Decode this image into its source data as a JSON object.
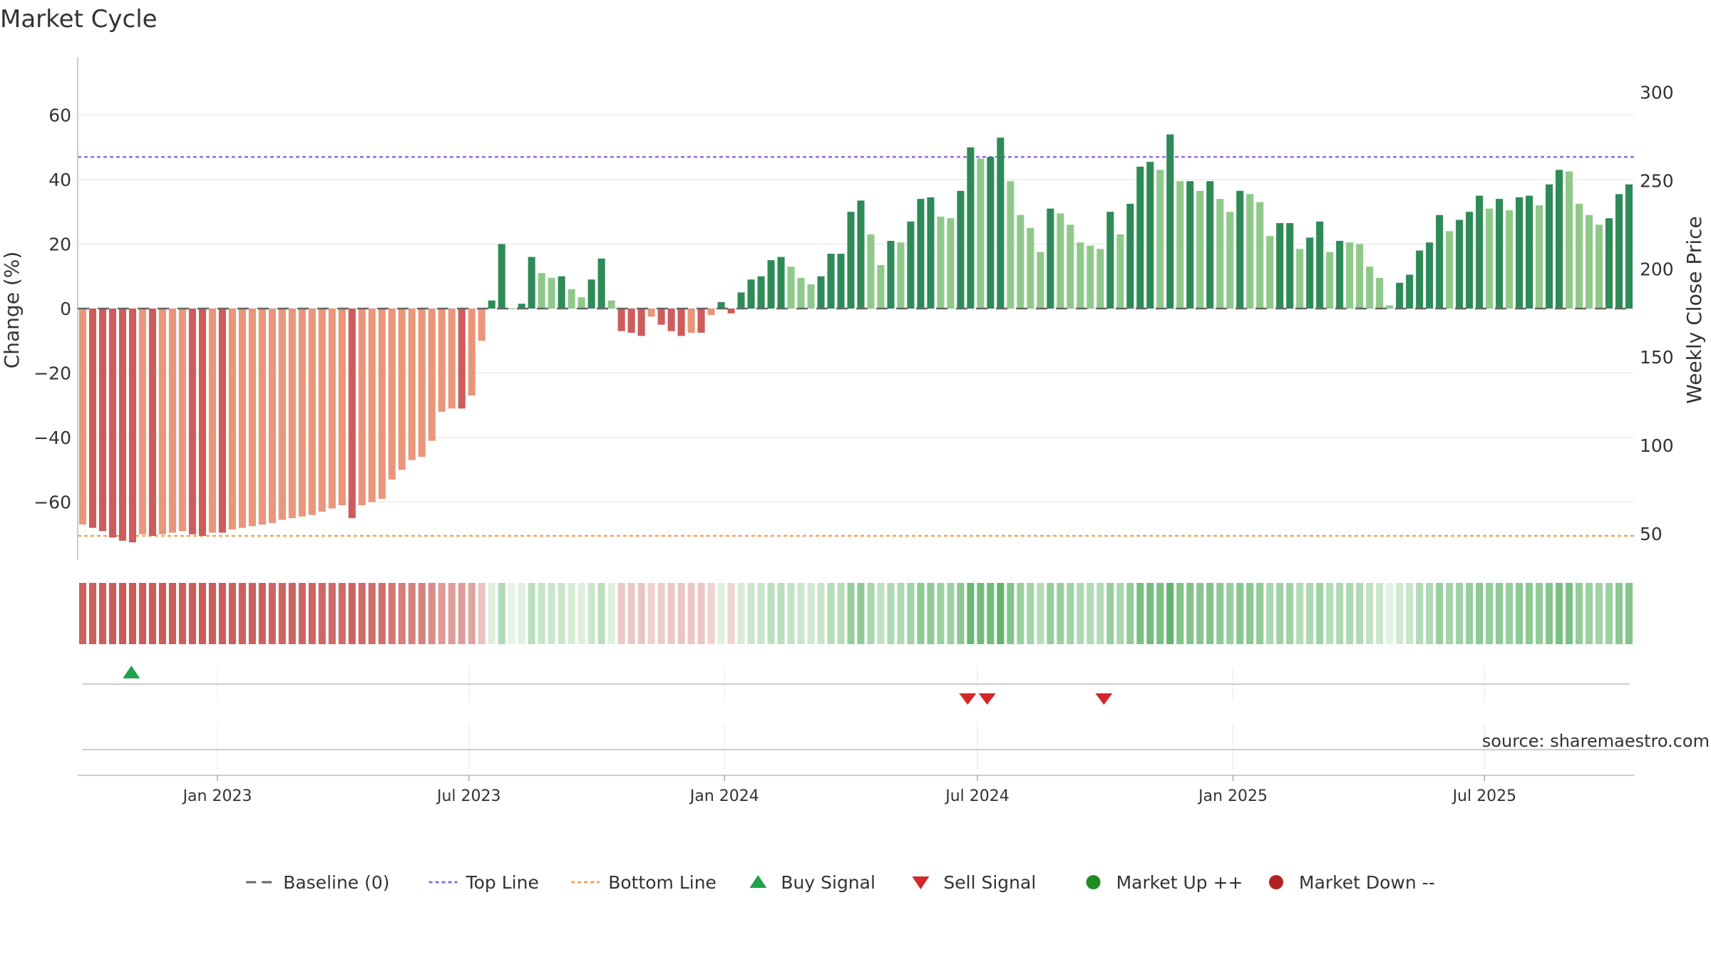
{
  "chart_data": {
    "type": "bar",
    "title": "Market Cycle",
    "source": "source: sharemaestro.com",
    "y_left": {
      "label": "Change (%)",
      "range": [
        -78,
        78
      ],
      "ticks": [
        {
          "v": 60,
          "t": "60"
        },
        {
          "v": 40,
          "t": "40"
        },
        {
          "v": 20,
          "t": "20"
        },
        {
          "v": 0,
          "t": "0"
        },
        {
          "v": -20,
          "t": "−20"
        },
        {
          "v": -40,
          "t": "−40"
        },
        {
          "v": -60,
          "t": "−60"
        }
      ]
    },
    "y_right": {
      "label": "Weekly Close Price",
      "range": [
        35,
        320
      ],
      "ticks": [
        {
          "v": 300,
          "t": "300"
        },
        {
          "v": 250,
          "t": "250"
        },
        {
          "v": 200,
          "t": "200"
        },
        {
          "v": 150,
          "t": "150"
        },
        {
          "v": 100,
          "t": "100"
        },
        {
          "v": 50,
          "t": "50"
        }
      ]
    },
    "x": {
      "start": "2022-09-26",
      "end": "2025-10-13",
      "ticks": [
        {
          "d": "2023-01-01",
          "t": "Jan 2023"
        },
        {
          "d": "2023-07-01",
          "t": "Jul 2023"
        },
        {
          "d": "2024-01-01",
          "t": "Jan 2024"
        },
        {
          "d": "2024-07-01",
          "t": "Jul 2024"
        },
        {
          "d": "2025-01-01",
          "t": "Jan 2025"
        },
        {
          "d": "2025-07-01",
          "t": "Jul 2025"
        }
      ]
    },
    "top_line": 47,
    "bottom_line": -70.5,
    "baseline": 0,
    "weekly_change": [
      -67,
      -68,
      -69,
      -71,
      -72,
      -72.5,
      -70,
      -70.5,
      -70,
      -69.5,
      -69,
      -70,
      -70.5,
      -69.5,
      -69.5,
      -68.5,
      -68,
      -67.5,
      -67,
      -66.5,
      -65.5,
      -65,
      -64.5,
      -64,
      -63,
      -62,
      -61,
      -65,
      -61,
      -60,
      -59,
      -53,
      -50,
      -47,
      -46,
      -41,
      -32,
      -31,
      -31,
      -27,
      -10,
      2.5,
      20,
      0,
      1.5,
      16,
      11,
      9.5,
      10,
      6,
      3.5,
      9,
      15.5,
      2.5,
      -7,
      -7.5,
      -8.5,
      -2.5,
      -5,
      -7,
      -8.5,
      -7.5,
      -7.5,
      -2,
      2,
      -1.5,
      5,
      9,
      10,
      15,
      16,
      13,
      9.5,
      7.5,
      10,
      17,
      17,
      30,
      33.5,
      23,
      13.5,
      21,
      20.5,
      27,
      34,
      34.5,
      28.5,
      28,
      36.5,
      50,
      46.5,
      47,
      53,
      39.5,
      29,
      25,
      17.5,
      31,
      29.5,
      26,
      20.5,
      19.5,
      18.5,
      30,
      23,
      32.5,
      44,
      45.5,
      43,
      54,
      39.5,
      39.5,
      36.5,
      39.5,
      34,
      30,
      36.5,
      35.5,
      33,
      22.5,
      26.5,
      26.5,
      18.5,
      22,
      27,
      17.5,
      21,
      20.5,
      20,
      13,
      9.5,
      1,
      8,
      10.5,
      18,
      20.5,
      29,
      24,
      27.5,
      30,
      35,
      31,
      34,
      30.5,
      34.5,
      35,
      32,
      38.5,
      43,
      42.5,
      32.5,
      29,
      26,
      28,
      35.5,
      38.5
    ],
    "signals": [
      {
        "type": "buy",
        "date": "2022-10-31"
      },
      {
        "type": "sell",
        "date": "2024-06-24"
      },
      {
        "type": "sell",
        "date": "2024-07-08"
      },
      {
        "type": "sell",
        "date": "2024-09-30"
      }
    ],
    "colors": {
      "bar_neg_strong": "#cd5c5c",
      "bar_neg_light": "#e9967a",
      "bar_pos_strong": "#2e8b57",
      "bar_pos_light": "#8fc98a",
      "top_line": "#9370db",
      "bottom_line": "#f4a460",
      "buy": "#1fa24a",
      "sell": "#d62728",
      "market_up": "#228b22",
      "market_down": "#b22222"
    },
    "legend": [
      {
        "label": "Baseline (0)",
        "marker": "dash"
      },
      {
        "label": "Top Line",
        "marker": "dot-purple"
      },
      {
        "label": "Bottom Line",
        "marker": "dot-orange"
      },
      {
        "label": "Buy Signal",
        "marker": "tri-up"
      },
      {
        "label": "Sell Signal",
        "marker": "tri-down"
      },
      {
        "label": "Market Up ++",
        "marker": "circle-green"
      },
      {
        "label": "Market Down --",
        "marker": "circle-red"
      }
    ],
    "legend_position": "bottom-center"
  }
}
